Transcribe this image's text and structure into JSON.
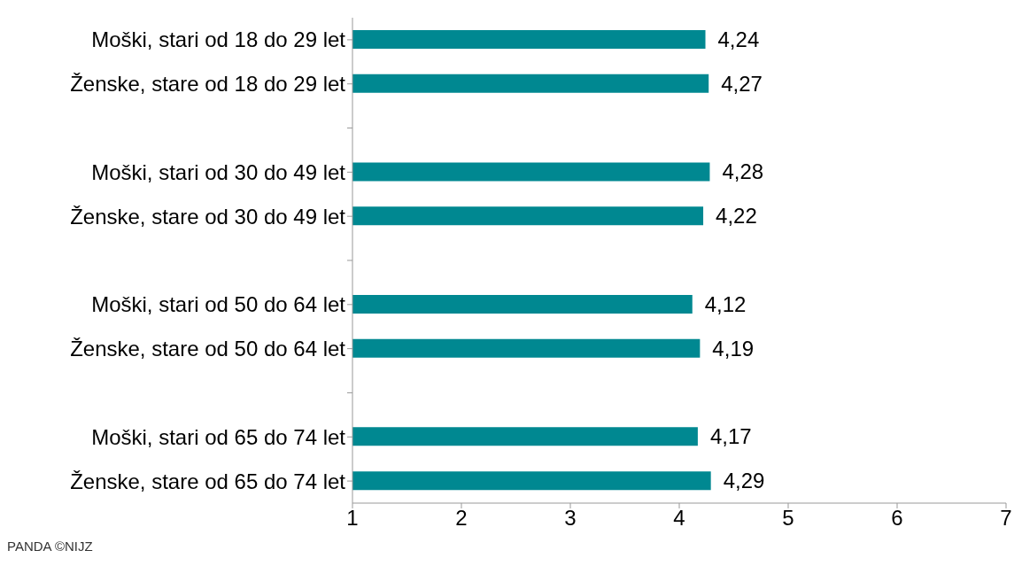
{
  "chart_data": {
    "type": "bar",
    "orientation": "horizontal",
    "categories": [
      "Moški, stari od 18 do 29 let",
      "Ženske, stare od 18 do 29 let",
      null,
      "Moški, stari od 30 do 49 let",
      "Ženske, stare od 30 do 49 let",
      null,
      "Moški, stari od 50 do 64 let",
      "Ženske, stare od 50 do 64 let",
      null,
      "Moški, stari od 65 do 74 let",
      "Ženske, stare od 65 do 74 let"
    ],
    "values": [
      4.24,
      4.27,
      null,
      4.28,
      4.22,
      null,
      4.12,
      4.19,
      null,
      4.17,
      4.29
    ],
    "value_labels": [
      "4,24",
      "4,27",
      null,
      "4,28",
      "4,22",
      null,
      "4,12",
      "4,19",
      null,
      "4,17",
      "4,29"
    ],
    "color": "#008891",
    "xlim": [
      1,
      7
    ],
    "xticks": [
      1,
      2,
      3,
      4,
      5,
      6,
      7
    ],
    "grid": false,
    "annotations": [
      "PANDA ©NIJZ"
    ]
  }
}
